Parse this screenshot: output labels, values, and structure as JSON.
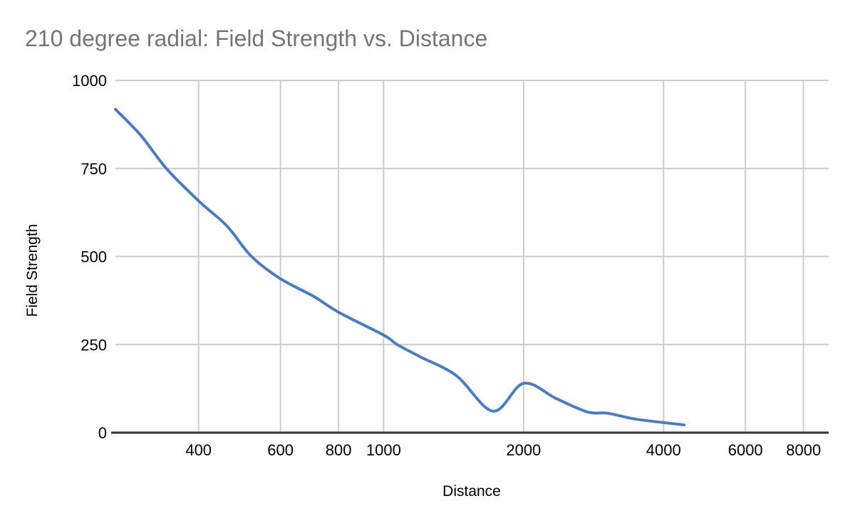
{
  "chart_data": {
    "type": "line",
    "title": "210 degree radial: Field Strength vs. Distance",
    "xlabel": "Distance",
    "ylabel": "Field Strength",
    "x_scale": "log",
    "x_domain": [
      265,
      9060
    ],
    "y_domain": [
      0,
      1000
    ],
    "x_ticks": [
      400,
      600,
      800,
      1000,
      2000,
      4000,
      6000,
      8000
    ],
    "y_ticks": [
      0,
      250,
      500,
      750,
      1000
    ],
    "grid": true,
    "legend": "none",
    "series": [
      {
        "name": "Field Strength",
        "color": "#4d7cbc",
        "points": [
          [
            265,
            918
          ],
          [
            300,
            845
          ],
          [
            341,
            750
          ],
          [
            400,
            658
          ],
          [
            460,
            587
          ],
          [
            520,
            500
          ],
          [
            600,
            437
          ],
          [
            707,
            387
          ],
          [
            800,
            342
          ],
          [
            1000,
            277
          ],
          [
            1070,
            250
          ],
          [
            1200,
            215
          ],
          [
            1433,
            162
          ],
          [
            1720,
            61
          ],
          [
            2000,
            140
          ],
          [
            2350,
            97
          ],
          [
            2740,
            59
          ],
          [
            3040,
            55
          ],
          [
            3500,
            38
          ],
          [
            4430,
            22
          ]
        ]
      }
    ]
  },
  "style": {
    "background": "#ffffff",
    "title_color": "#757575",
    "tick_label_color": "#000000",
    "axis_title_color": "#000000",
    "gridline_color": "#cccccc",
    "axis_line_color": "#333333"
  }
}
